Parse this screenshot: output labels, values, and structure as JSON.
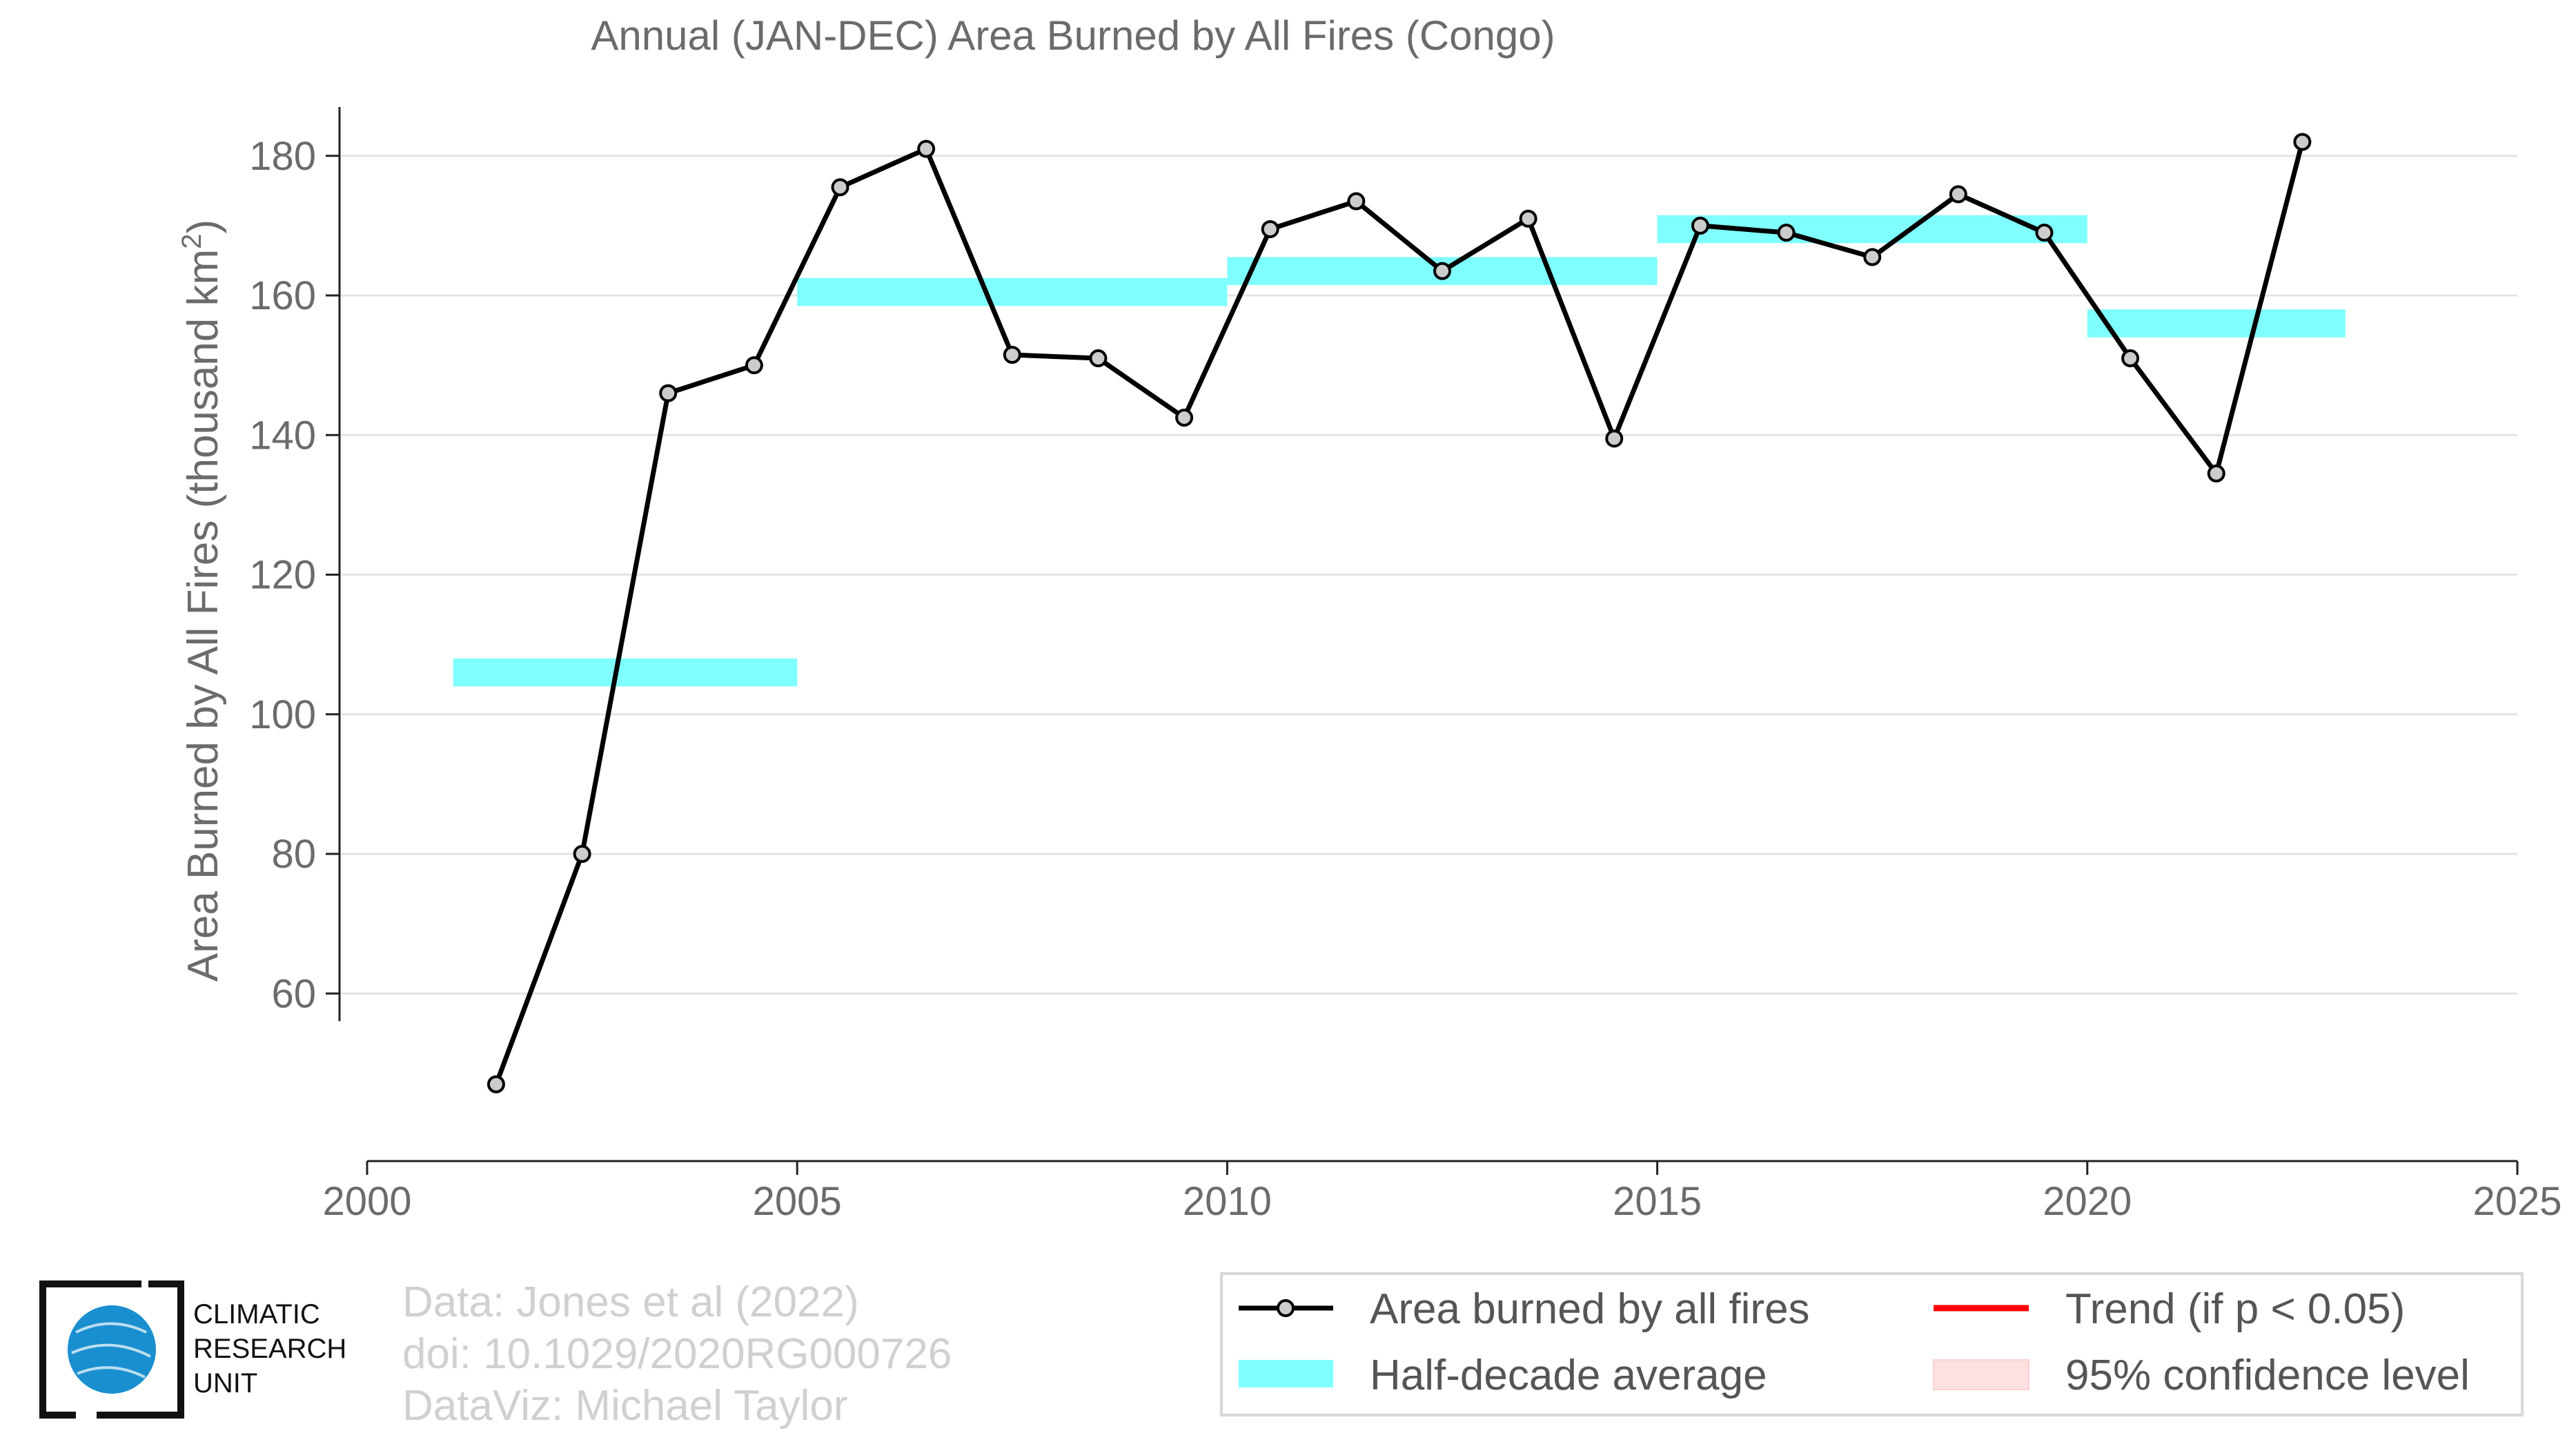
{
  "chart_data": {
    "type": "line",
    "title": "Annual (JAN-DEC) Area Burned by All Fires (Congo)",
    "ylabel_main": "Area Burned by All Fires (thousand km",
    "ylabel_sup": "2",
    "ylabel_close": ")",
    "xlim": [
      2000,
      2025
    ],
    "ylim": [
      36,
      187
    ],
    "x_ticks": [
      2000,
      2005,
      2010,
      2015,
      2020,
      2025
    ],
    "y_ticks": [
      60,
      80,
      100,
      120,
      140,
      160,
      180
    ],
    "grid": "horizontal",
    "legend_placement": "bottom-right",
    "series": [
      {
        "name": "Area burned by all fires",
        "color": "#000000",
        "marker_fill": "#cccccc",
        "x": [
          2001.5,
          2002.5,
          2003.5,
          2004.5,
          2005.5,
          2006.5,
          2007.5,
          2008.5,
          2009.5,
          2010.5,
          2011.5,
          2012.5,
          2013.5,
          2014.5,
          2015.5,
          2016.5,
          2017.5,
          2018.5,
          2019.5,
          2020.5,
          2021.5,
          2022.5
        ],
        "y": [
          47,
          80,
          146,
          150,
          175.5,
          181,
          151.5,
          151,
          142.5,
          169.5,
          173.5,
          163.5,
          171,
          139.5,
          170,
          169,
          165.5,
          174.5,
          169,
          151,
          134.5,
          182
        ]
      }
    ],
    "half_decade_average": {
      "name": "Half-decade average",
      "color": "#7fffff",
      "segments": [
        {
          "x_start": 2001,
          "x_end": 2005,
          "y_low": 104,
          "y_high": 108
        },
        {
          "x_start": 2005,
          "x_end": 2010,
          "y_low": 158.5,
          "y_high": 162.5
        },
        {
          "x_start": 2010,
          "x_end": 2015,
          "y_low": 161.5,
          "y_high": 165.5
        },
        {
          "x_start": 2015,
          "x_end": 2020,
          "y_low": 167.5,
          "y_high": 171.5
        },
        {
          "x_start": 2020,
          "x_end": 2023,
          "y_low": 154,
          "y_high": 158
        }
      ]
    },
    "legend": [
      {
        "key": "line",
        "label": "Area burned by all fires"
      },
      {
        "key": "trend",
        "label": "Trend (if p < 0.05)",
        "color": "#ff0000"
      },
      {
        "key": "halfdecade",
        "label": "Half-decade average",
        "color": "#7fffff"
      },
      {
        "key": "ci",
        "label": "95% confidence level",
        "color": "#ffe0e0"
      }
    ]
  },
  "credits": {
    "line1": "Data: Jones et al (2022)",
    "line2": "doi: 10.1029/2020RG000726",
    "line3": "DataViz: Michael Taylor"
  },
  "logo": {
    "line1": "CLIMATIC",
    "line2": "RESEARCH",
    "line3": "UNIT",
    "globe_color": "#1a8fd0"
  }
}
